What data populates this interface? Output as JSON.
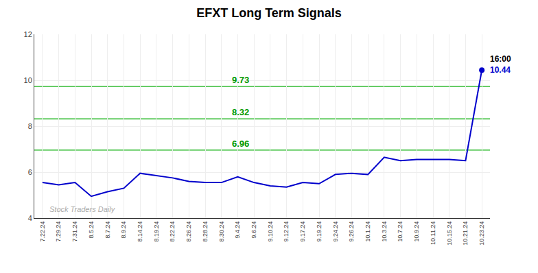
{
  "chart_data": {
    "type": "line",
    "title": "EFXT Long Term Signals",
    "categories": [
      "7.22.24",
      "7.29.24",
      "7.31.24",
      "8.5.24",
      "8.7.24",
      "8.9.24",
      "8.14.24",
      "8.19.24",
      "8.22.24",
      "8.26.24",
      "8.28.24",
      "8.30.24",
      "9.4.24",
      "9.6.24",
      "9.10.24",
      "9.12.24",
      "9.17.24",
      "9.19.24",
      "9.24.24",
      "9.26.24",
      "10.1.24",
      "10.3.24",
      "10.7.24",
      "10.9.24",
      "10.11.24",
      "10.15.24",
      "10.21.24",
      "10.23.24"
    ],
    "values": [
      5.55,
      5.45,
      5.55,
      4.95,
      5.15,
      5.3,
      5.95,
      5.85,
      5.75,
      5.6,
      5.55,
      5.55,
      5.8,
      5.55,
      5.4,
      5.35,
      5.55,
      5.5,
      5.9,
      5.95,
      5.9,
      6.65,
      6.5,
      6.55,
      6.55,
      6.55,
      6.5,
      10.44
    ],
    "color": "#0000cc",
    "ylim": [
      4,
      12
    ],
    "yticks": [
      4,
      6,
      8,
      10,
      12
    ],
    "grid": true,
    "hlines": [
      {
        "value": 9.73,
        "label": "9.73",
        "color": "#66cc66",
        "label_color": "#009900"
      },
      {
        "value": 8.32,
        "label": "8.32",
        "color": "#66cc66",
        "label_color": "#009900"
      },
      {
        "value": 6.96,
        "label": "6.96",
        "color": "#66cc66",
        "label_color": "#009900"
      }
    ],
    "annotations": [
      {
        "text": "16:00",
        "color": "#000000"
      },
      {
        "text": "10.44",
        "color": "#0000cc"
      }
    ],
    "watermark": {
      "text": "Stock Traders Daily",
      "color": "#aaaaaa"
    }
  }
}
